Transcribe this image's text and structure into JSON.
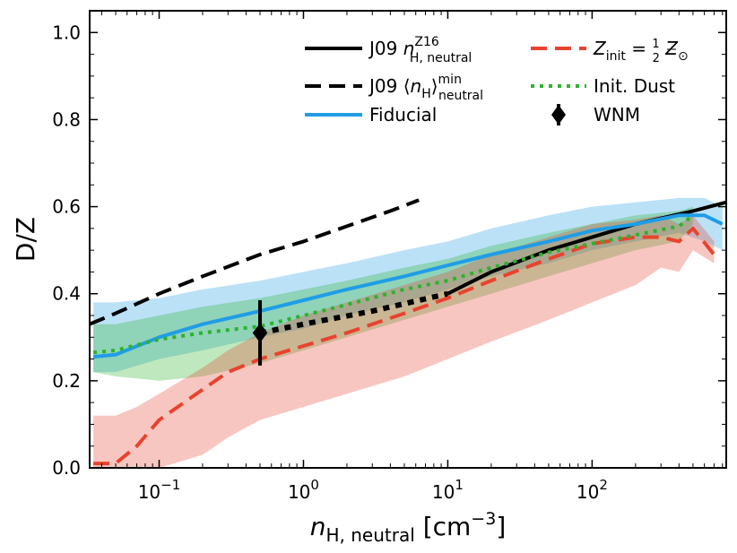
{
  "chart_data": {
    "type": "line",
    "title": "",
    "xlabel": "n_H, neutral [cm^-3]",
    "ylabel": "D/Z",
    "xscale": "log",
    "xlim": [
      0.033,
      850
    ],
    "ylim": [
      0.0,
      1.05
    ],
    "yticks": [
      0.0,
      0.2,
      0.4,
      0.6,
      0.8,
      1.0
    ],
    "ytick_labels": [
      "0.0",
      "0.2",
      "0.4",
      "0.6",
      "0.8",
      "1.0"
    ],
    "xticks": [
      {
        "value": 0.1,
        "base": "10",
        "exp": "−1"
      },
      {
        "value": 1,
        "base": "10",
        "exp": "0"
      },
      {
        "value": 10,
        "base": "10",
        "exp": "1"
      },
      {
        "value": 100,
        "base": "10",
        "exp": "2"
      }
    ],
    "legend": {
      "placement": "top-right",
      "items": [
        {
          "id": "j09-z16",
          "label": "J09 n_H,neutral^Z16",
          "main": "J09 ",
          "var": "n",
          "sub": "H, neutral",
          "sup": "Z16",
          "color": "#000000",
          "style": "solid"
        },
        {
          "id": "j09-min",
          "label": "J09 ⟨n_H⟩_neutral^min",
          "main": "J09 ⟨",
          "var": "n",
          "varSub": "H",
          "close": "⟩",
          "sub": "neutral",
          "sup": "min",
          "color": "#000000",
          "style": "dashed"
        },
        {
          "id": "fiducial",
          "label": "Fiducial",
          "color": "#1f9de6",
          "style": "solid"
        },
        {
          "id": "half-z",
          "label": "Z_init = 1/2 Z_⊙",
          "var": "Z",
          "sub": "init",
          "eq": " = ",
          "frac_num": "1",
          "frac_den": "2",
          "var2": "Z",
          "sub2": "⊙",
          "color": "#e8432e",
          "style": "dashed"
        },
        {
          "id": "init-dust",
          "label": "Init. Dust",
          "color": "#2cb32c",
          "style": "dotted"
        },
        {
          "id": "wnm",
          "label": "WNM",
          "color": "#000000",
          "style": "marker"
        }
      ]
    },
    "series": [
      {
        "name": "J09 n_H,neutral^Z16 (dotted extrapolation)",
        "color": "#000000",
        "style": "dotted-black",
        "x": [
          0.5,
          1,
          3,
          10
        ],
        "y": [
          0.31,
          0.33,
          0.36,
          0.4
        ]
      },
      {
        "name": "J09 n_H,neutral^Z16",
        "color": "#000000",
        "style": "solid",
        "x": [
          10,
          20,
          50,
          100,
          200,
          500,
          850
        ],
        "y": [
          0.4,
          0.45,
          0.5,
          0.53,
          0.56,
          0.59,
          0.61
        ]
      },
      {
        "name": "J09 ⟨n_H⟩_neutral^min",
        "color": "#000000",
        "style": "dashed",
        "x": [
          0.033,
          0.05,
          0.1,
          0.2,
          0.5,
          1,
          2,
          4,
          6.3
        ],
        "y": [
          0.33,
          0.355,
          0.4,
          0.44,
          0.49,
          0.52,
          0.555,
          0.59,
          0.615
        ]
      },
      {
        "name": "Fiducial",
        "color": "#1f9de6",
        "style": "solid",
        "x": [
          0.035,
          0.05,
          0.1,
          0.2,
          0.5,
          1,
          2,
          5,
          10,
          20,
          50,
          100,
          200,
          400,
          600,
          800
        ],
        "y": [
          0.255,
          0.26,
          0.3,
          0.33,
          0.36,
          0.385,
          0.41,
          0.44,
          0.465,
          0.49,
          0.52,
          0.545,
          0.56,
          0.58,
          0.58,
          0.56
        ]
      },
      {
        "name": "Z_init = 1/2 Z_⊙",
        "color": "#e8432e",
        "style": "dashed",
        "x": [
          0.035,
          0.05,
          0.07,
          0.1,
          0.2,
          0.3,
          0.5,
          1,
          2,
          5,
          10,
          20,
          50,
          100,
          200,
          300,
          400,
          500,
          700
        ],
        "y": [
          0.01,
          0.01,
          0.05,
          0.11,
          0.18,
          0.22,
          0.25,
          0.28,
          0.31,
          0.355,
          0.39,
          0.43,
          0.48,
          0.515,
          0.53,
          0.53,
          0.52,
          0.55,
          0.49
        ]
      },
      {
        "name": "Init. Dust",
        "color": "#2cb32c",
        "style": "dotted",
        "x": [
          0.035,
          0.05,
          0.1,
          0.2,
          0.5,
          1,
          2,
          5,
          10,
          20,
          50,
          100,
          200,
          400,
          500
        ],
        "y": [
          0.265,
          0.27,
          0.295,
          0.31,
          0.325,
          0.35,
          0.375,
          0.41,
          0.43,
          0.46,
          0.495,
          0.515,
          0.535,
          0.555,
          0.58
        ]
      }
    ],
    "bands": [
      {
        "name": "Fiducial range",
        "color": "#1f9de6",
        "opacity": 0.3,
        "x": [
          0.035,
          0.05,
          0.1,
          0.2,
          0.5,
          1,
          2,
          5,
          10,
          20,
          50,
          100,
          200,
          400,
          600,
          800
        ],
        "lower": [
          0.22,
          0.22,
          0.25,
          0.27,
          0.3,
          0.32,
          0.35,
          0.38,
          0.41,
          0.44,
          0.47,
          0.5,
          0.52,
          0.54,
          0.52,
          0.5
        ],
        "upper": [
          0.38,
          0.38,
          0.39,
          0.41,
          0.43,
          0.45,
          0.47,
          0.5,
          0.52,
          0.55,
          0.58,
          0.6,
          0.61,
          0.62,
          0.62,
          0.6
        ]
      },
      {
        "name": "Init. Dust range",
        "color": "#2cb32c",
        "opacity": 0.3,
        "x": [
          0.035,
          0.05,
          0.1,
          0.2,
          0.5,
          1,
          2,
          5,
          10,
          20,
          50,
          100,
          200,
          400,
          500
        ],
        "lower": [
          0.22,
          0.21,
          0.2,
          0.21,
          0.24,
          0.27,
          0.3,
          0.34,
          0.37,
          0.4,
          0.44,
          0.47,
          0.5,
          0.52,
          0.56
        ],
        "upper": [
          0.33,
          0.33,
          0.35,
          0.37,
          0.39,
          0.41,
          0.43,
          0.46,
          0.48,
          0.51,
          0.54,
          0.56,
          0.58,
          0.59,
          0.6
        ]
      },
      {
        "name": "Z_init = 1/2 Z_⊙ range",
        "color": "#e8432e",
        "opacity": 0.3,
        "x": [
          0.035,
          0.05,
          0.07,
          0.1,
          0.2,
          0.3,
          0.5,
          1,
          2,
          5,
          10,
          20,
          50,
          100,
          200,
          300,
          400,
          500,
          700
        ],
        "lower": [
          0.0,
          0.0,
          0.0,
          0.0,
          0.03,
          0.07,
          0.11,
          0.14,
          0.17,
          0.21,
          0.25,
          0.29,
          0.34,
          0.38,
          0.42,
          0.46,
          0.45,
          0.5,
          0.47
        ],
        "upper": [
          0.12,
          0.12,
          0.14,
          0.17,
          0.23,
          0.27,
          0.31,
          0.35,
          0.38,
          0.42,
          0.45,
          0.49,
          0.53,
          0.56,
          0.57,
          0.58,
          0.56,
          0.58,
          0.52
        ]
      }
    ],
    "points": [
      {
        "name": "WNM",
        "x": 0.5,
        "y": 0.31,
        "yerr": 0.075,
        "marker": "diamond",
        "color": "#000000"
      }
    ]
  }
}
